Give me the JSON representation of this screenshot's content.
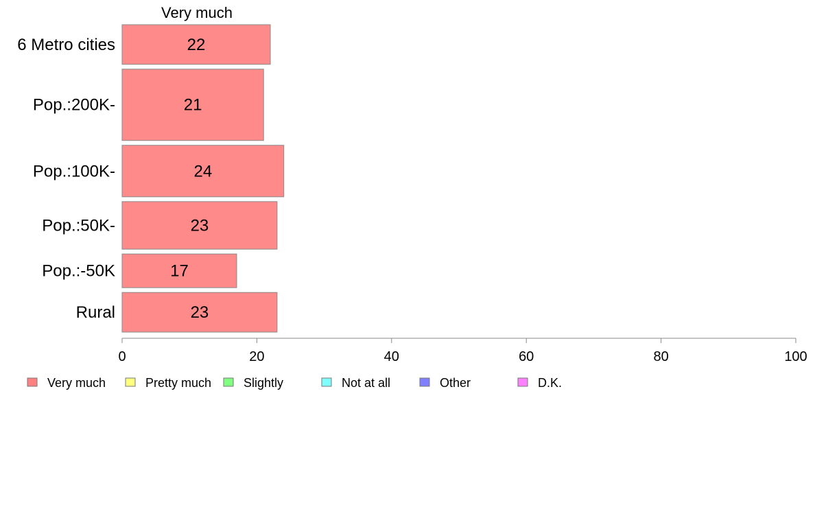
{
  "chart_data": {
    "type": "bar",
    "orientation": "horizontal",
    "series_title": "Very much",
    "categories": [
      "6 Metro cities",
      "Pop.:200K-",
      "Pop.:100K-",
      "Pop.:50K-",
      "Pop.:-50K",
      "Rural"
    ],
    "values": [
      22,
      21,
      24,
      23,
      17,
      23
    ],
    "value_labels": [
      "22",
      "21",
      "24",
      "23",
      "17",
      "23"
    ],
    "relative_widths": [
      1.0,
      1.8,
      1.3,
      1.2,
      0.85,
      1.0
    ],
    "xlim": [
      0,
      100
    ],
    "x_ticks": [
      0,
      20,
      40,
      60,
      80,
      100
    ],
    "x_tick_labels": [
      "0",
      "20",
      "40",
      "60",
      "80",
      "100"
    ],
    "grid": false,
    "bar_color": "#ff8a8a",
    "bar_stroke": "#888888",
    "legend": {
      "placement": "bottom",
      "items": [
        {
          "label": "Very much",
          "color": "#ff8080"
        },
        {
          "label": "Pretty much",
          "color": "#ffff80"
        },
        {
          "label": "Slightly",
          "color": "#80ff80"
        },
        {
          "label": "Not at all",
          "color": "#80ffff"
        },
        {
          "label": "Other",
          "color": "#8080ff"
        },
        {
          "label": "D.K.",
          "color": "#ff80ff"
        }
      ]
    }
  }
}
